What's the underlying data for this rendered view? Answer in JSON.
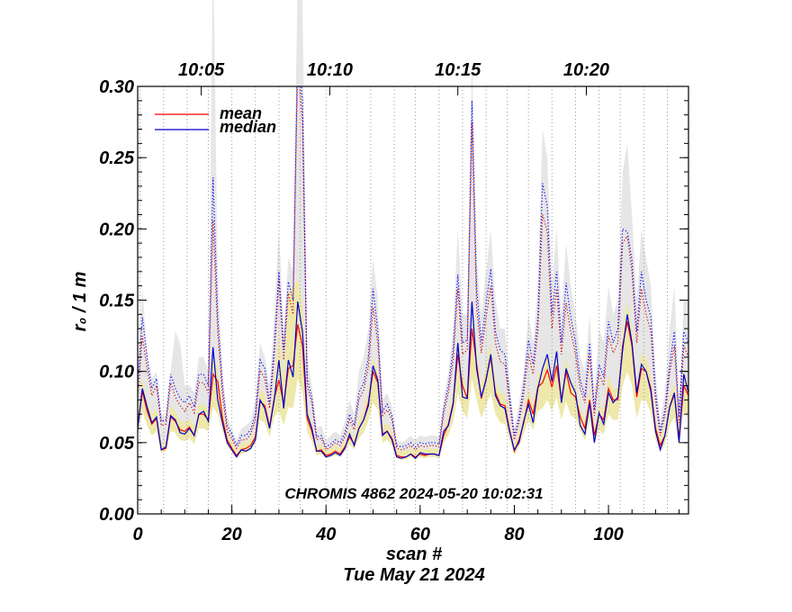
{
  "chart_data": {
    "type": "line",
    "title": "",
    "xlabel": "scan #",
    "ylabel": "r₀ / 1 m",
    "xlim": [
      0,
      117
    ],
    "ylim": [
      0.0,
      0.3
    ],
    "x_ticks": [
      0,
      20,
      40,
      60,
      80,
      100
    ],
    "x_tick_labels": [
      "0",
      "20",
      "40",
      "60",
      "80",
      "100"
    ],
    "y_ticks": [
      0.0,
      0.05,
      0.1,
      0.15,
      0.2,
      0.25,
      0.3
    ],
    "y_tick_labels": [
      "0.00",
      "0.05",
      "0.10",
      "0.15",
      "0.20",
      "0.25",
      "0.30"
    ],
    "top_axis_labels": [
      {
        "x": 13.5,
        "label": "10:05"
      },
      {
        "x": 40.8,
        "label": "10:10"
      },
      {
        "x": 68.0,
        "label": "10:15"
      },
      {
        "x": 95.3,
        "label": "10:20"
      }
    ],
    "time_gridlines_x": [
      0.5,
      5.5,
      10.5,
      15,
      20,
      25,
      30,
      34.5,
      40,
      44.5,
      49.5,
      54.5,
      59,
      64,
      69,
      74,
      78.5,
      83,
      88,
      93,
      98,
      102.5,
      107.5,
      112.5
    ],
    "annotation": "CHROMIS 4862 2024-05-20 10:02:31",
    "date_label": "Tue May 21 2024",
    "legend": [
      {
        "name": "mean",
        "color": "#ff0000"
      },
      {
        "name": "median",
        "color": "#0000cc"
      }
    ],
    "series": [
      {
        "name": "mean",
        "color": "#ff0000",
        "style": "solid",
        "values": [
          0.062,
          0.086,
          0.072,
          0.063,
          0.067,
          0.045,
          0.046,
          0.068,
          0.065,
          0.059,
          0.058,
          0.061,
          0.055,
          0.07,
          0.07,
          0.066,
          0.098,
          0.093,
          0.067,
          0.052,
          0.046,
          0.041,
          0.045,
          0.046,
          0.048,
          0.054,
          0.079,
          0.076,
          0.061,
          0.081,
          0.094,
          0.077,
          0.102,
          0.104,
          0.133,
          0.118,
          0.067,
          0.058,
          0.044,
          0.045,
          0.041,
          0.042,
          0.044,
          0.042,
          0.047,
          0.054,
          0.049,
          0.06,
          0.066,
          0.078,
          0.1,
          0.092,
          0.056,
          0.058,
          0.053,
          0.041,
          0.04,
          0.04,
          0.042,
          0.04,
          0.042,
          0.041,
          0.042,
          0.042,
          0.041,
          0.055,
          0.063,
          0.078,
          0.112,
          0.09,
          0.081,
          0.13,
          0.105,
          0.081,
          0.095,
          0.11,
          0.085,
          0.077,
          0.076,
          0.059,
          0.044,
          0.052,
          0.064,
          0.08,
          0.07,
          0.089,
          0.092,
          0.101,
          0.089,
          0.104,
          0.08,
          0.1,
          0.085,
          0.082,
          0.068,
          0.06,
          0.08,
          0.055,
          0.07,
          0.066,
          0.088,
          0.08,
          0.08,
          0.118,
          0.135,
          0.118,
          0.082,
          0.102,
          0.1,
          0.088,
          0.06,
          0.048,
          0.055,
          0.075,
          0.084,
          0.053,
          0.09,
          0.083
        ]
      },
      {
        "name": "median",
        "color": "#0000cc",
        "style": "solid",
        "values": [
          0.06,
          0.088,
          0.075,
          0.064,
          0.068,
          0.045,
          0.047,
          0.069,
          0.066,
          0.057,
          0.056,
          0.06,
          0.055,
          0.07,
          0.072,
          0.065,
          0.117,
          0.08,
          0.064,
          0.05,
          0.045,
          0.04,
          0.045,
          0.044,
          0.046,
          0.052,
          0.08,
          0.074,
          0.06,
          0.08,
          0.108,
          0.074,
          0.108,
          0.096,
          0.149,
          0.128,
          0.07,
          0.06,
          0.044,
          0.044,
          0.04,
          0.041,
          0.043,
          0.041,
          0.046,
          0.056,
          0.048,
          0.06,
          0.066,
          0.076,
          0.104,
          0.094,
          0.055,
          0.058,
          0.052,
          0.04,
          0.039,
          0.04,
          0.042,
          0.039,
          0.043,
          0.042,
          0.042,
          0.042,
          0.041,
          0.058,
          0.062,
          0.077,
          0.12,
          0.082,
          0.081,
          0.149,
          0.102,
          0.082,
          0.094,
          0.112,
          0.083,
          0.076,
          0.074,
          0.058,
          0.045,
          0.05,
          0.065,
          0.077,
          0.064,
          0.088,
          0.102,
          0.112,
          0.093,
          0.114,
          0.078,
          0.102,
          0.092,
          0.085,
          0.062,
          0.056,
          0.078,
          0.05,
          0.071,
          0.063,
          0.085,
          0.078,
          0.082,
          0.115,
          0.14,
          0.12,
          0.085,
          0.105,
          0.1,
          0.086,
          0.058,
          0.045,
          0.055,
          0.075,
          0.085,
          0.05,
          0.098,
          0.085
        ]
      },
      {
        "name": "mean high quantile",
        "color": "#cc0000",
        "style": "dotted",
        "values": [
          0.082,
          0.125,
          0.102,
          0.083,
          0.09,
          0.062,
          0.063,
          0.092,
          0.082,
          0.076,
          0.072,
          0.078,
          0.071,
          0.092,
          0.092,
          0.085,
          0.206,
          0.128,
          0.084,
          0.058,
          0.053,
          0.046,
          0.052,
          0.052,
          0.056,
          0.066,
          0.101,
          0.095,
          0.074,
          0.11,
          0.165,
          0.108,
          0.155,
          0.14,
          0.318,
          0.275,
          0.09,
          0.078,
          0.052,
          0.053,
          0.045,
          0.047,
          0.05,
          0.048,
          0.054,
          0.066,
          0.059,
          0.08,
          0.087,
          0.103,
          0.145,
          0.12,
          0.069,
          0.073,
          0.066,
          0.046,
          0.045,
          0.046,
          0.048,
          0.045,
          0.048,
          0.047,
          0.048,
          0.048,
          0.047,
          0.07,
          0.085,
          0.108,
          0.158,
          0.112,
          0.115,
          0.275,
          0.145,
          0.113,
          0.138,
          0.16,
          0.12,
          0.107,
          0.105,
          0.078,
          0.052,
          0.064,
          0.084,
          0.112,
          0.098,
          0.128,
          0.21,
          0.198,
          0.13,
          0.158,
          0.112,
          0.148,
          0.128,
          0.112,
          0.088,
          0.078,
          0.112,
          0.069,
          0.099,
          0.09,
          0.125,
          0.113,
          0.12,
          0.19,
          0.195,
          0.17,
          0.12,
          0.158,
          0.14,
          0.128,
          0.08,
          0.055,
          0.069,
          0.099,
          0.118,
          0.064,
          0.118,
          0.11
        ]
      },
      {
        "name": "median high quantile",
        "color": "#0000ff",
        "style": "dotted",
        "values": [
          0.09,
          0.138,
          0.11,
          0.088,
          0.095,
          0.065,
          0.066,
          0.098,
          0.088,
          0.081,
          0.078,
          0.083,
          0.075,
          0.098,
          0.098,
          0.09,
          0.236,
          0.138,
          0.09,
          0.062,
          0.056,
          0.048,
          0.055,
          0.055,
          0.059,
          0.07,
          0.108,
          0.102,
          0.078,
          0.117,
          0.17,
          0.115,
          0.163,
          0.15,
          0.33,
          0.29,
          0.095,
          0.082,
          0.054,
          0.055,
          0.047,
          0.049,
          0.052,
          0.05,
          0.057,
          0.07,
          0.062,
          0.085,
          0.092,
          0.11,
          0.158,
          0.128,
          0.072,
          0.077,
          0.069,
          0.048,
          0.047,
          0.048,
          0.05,
          0.047,
          0.05,
          0.049,
          0.05,
          0.05,
          0.049,
          0.074,
          0.09,
          0.115,
          0.168,
          0.12,
          0.122,
          0.29,
          0.158,
          0.12,
          0.148,
          0.172,
          0.128,
          0.115,
          0.112,
          0.083,
          0.055,
          0.068,
          0.09,
          0.122,
          0.105,
          0.138,
          0.232,
          0.216,
          0.14,
          0.17,
          0.12,
          0.162,
          0.138,
          0.12,
          0.094,
          0.082,
          0.12,
          0.073,
          0.105,
          0.096,
          0.135,
          0.12,
          0.13,
          0.2,
          0.198,
          0.178,
          0.128,
          0.17,
          0.15,
          0.138,
          0.085,
          0.058,
          0.073,
          0.105,
          0.128,
          0.068,
          0.128,
          0.12
        ]
      },
      {
        "name": "gray band upper",
        "color": "#e6e6e6",
        "style": "band",
        "values": [
          0.1,
          0.16,
          0.11,
          0.095,
          0.1,
          0.07,
          0.068,
          0.1,
          0.128,
          0.12,
          0.09,
          0.09,
          0.085,
          0.11,
          0.11,
          0.1,
          0.4,
          0.17,
          0.1,
          0.068,
          0.06,
          0.052,
          0.06,
          0.062,
          0.065,
          0.08,
          0.12,
          0.11,
          0.09,
          0.14,
          0.2,
          0.13,
          0.18,
          0.17,
          0.38,
          0.36,
          0.11,
          0.09,
          0.06,
          0.062,
          0.052,
          0.055,
          0.058,
          0.055,
          0.065,
          0.08,
          0.07,
          0.1,
          0.11,
          0.13,
          0.18,
          0.15,
          0.08,
          0.085,
          0.075,
          0.052,
          0.05,
          0.052,
          0.055,
          0.052,
          0.055,
          0.054,
          0.055,
          0.055,
          0.054,
          0.08,
          0.1,
          0.13,
          0.2,
          0.14,
          0.14,
          0.32,
          0.18,
          0.14,
          0.17,
          0.2,
          0.15,
          0.13,
          0.13,
          0.095,
          0.06,
          0.078,
          0.1,
          0.14,
          0.12,
          0.16,
          0.27,
          0.25,
          0.16,
          0.2,
          0.14,
          0.19,
          0.16,
          0.14,
          0.11,
          0.1,
          0.14,
          0.085,
          0.13,
          0.12,
          0.16,
          0.14,
          0.15,
          0.24,
          0.26,
          0.21,
          0.15,
          0.2,
          0.18,
          0.16,
          0.1,
          0.065,
          0.085,
          0.13,
          0.16,
          0.08,
          0.15,
          0.15
        ]
      },
      {
        "name": "gray band lower",
        "color": "#e6e6e6",
        "style": "band",
        "values": [
          0.062,
          0.086,
          0.072,
          0.063,
          0.067,
          0.045,
          0.046,
          0.068,
          0.065,
          0.059,
          0.058,
          0.061,
          0.055,
          0.07,
          0.07,
          0.066,
          0.098,
          0.093,
          0.067,
          0.052,
          0.046,
          0.041,
          0.045,
          0.046,
          0.048,
          0.054,
          0.079,
          0.076,
          0.061,
          0.081,
          0.094,
          0.077,
          0.102,
          0.104,
          0.133,
          0.118,
          0.067,
          0.058,
          0.044,
          0.045,
          0.041,
          0.042,
          0.044,
          0.042,
          0.047,
          0.054,
          0.049,
          0.06,
          0.066,
          0.078,
          0.1,
          0.092,
          0.056,
          0.058,
          0.053,
          0.041,
          0.04,
          0.04,
          0.042,
          0.04,
          0.042,
          0.041,
          0.042,
          0.042,
          0.041,
          0.055,
          0.063,
          0.078,
          0.112,
          0.09,
          0.081,
          0.13,
          0.105,
          0.081,
          0.095,
          0.11,
          0.085,
          0.077,
          0.076,
          0.059,
          0.044,
          0.052,
          0.064,
          0.08,
          0.07,
          0.089,
          0.092,
          0.101,
          0.089,
          0.104,
          0.08,
          0.1,
          0.085,
          0.082,
          0.068,
          0.06,
          0.08,
          0.055,
          0.07,
          0.066,
          0.088,
          0.08,
          0.08,
          0.118,
          0.135,
          0.118,
          0.082,
          0.102,
          0.1,
          0.088,
          0.06,
          0.048,
          0.055,
          0.075,
          0.084,
          0.053,
          0.09,
          0.083
        ]
      },
      {
        "name": "yellow band upper",
        "color": "#eee8aa",
        "style": "band",
        "values": [
          0.07,
          0.095,
          0.08,
          0.07,
          0.074,
          0.05,
          0.051,
          0.076,
          0.072,
          0.065,
          0.064,
          0.067,
          0.061,
          0.077,
          0.077,
          0.073,
          0.11,
          0.103,
          0.074,
          0.056,
          0.05,
          0.044,
          0.049,
          0.05,
          0.052,
          0.059,
          0.087,
          0.084,
          0.067,
          0.09,
          0.13,
          0.096,
          0.155,
          0.16,
          0.165,
          0.148,
          0.078,
          0.064,
          0.048,
          0.049,
          0.044,
          0.046,
          0.048,
          0.046,
          0.051,
          0.059,
          0.054,
          0.066,
          0.073,
          0.086,
          0.11,
          0.101,
          0.062,
          0.064,
          0.058,
          0.045,
          0.044,
          0.044,
          0.046,
          0.044,
          0.046,
          0.045,
          0.046,
          0.046,
          0.045,
          0.06,
          0.069,
          0.086,
          0.123,
          0.099,
          0.089,
          0.143,
          0.116,
          0.089,
          0.105,
          0.121,
          0.094,
          0.085,
          0.084,
          0.065,
          0.048,
          0.057,
          0.07,
          0.088,
          0.077,
          0.098,
          0.101,
          0.111,
          0.098,
          0.114,
          0.088,
          0.11,
          0.094,
          0.09,
          0.075,
          0.066,
          0.088,
          0.061,
          0.077,
          0.073,
          0.097,
          0.088,
          0.088,
          0.13,
          0.149,
          0.13,
          0.09,
          0.112,
          0.11,
          0.097,
          0.066,
          0.053,
          0.061,
          0.083,
          0.092,
          0.058,
          0.099,
          0.091
        ]
      },
      {
        "name": "yellow band lower",
        "color": "#eee8aa",
        "style": "band",
        "values": [
          0.055,
          0.072,
          0.062,
          0.055,
          0.058,
          0.043,
          0.044,
          0.058,
          0.057,
          0.052,
          0.051,
          0.053,
          0.049,
          0.06,
          0.06,
          0.058,
          0.075,
          0.07,
          0.058,
          0.048,
          0.043,
          0.039,
          0.042,
          0.043,
          0.045,
          0.049,
          0.066,
          0.064,
          0.054,
          0.068,
          0.072,
          0.062,
          0.075,
          0.074,
          0.095,
          0.085,
          0.058,
          0.051,
          0.041,
          0.042,
          0.039,
          0.04,
          0.041,
          0.04,
          0.044,
          0.049,
          0.045,
          0.053,
          0.057,
          0.065,
          0.078,
          0.073,
          0.05,
          0.052,
          0.048,
          0.039,
          0.038,
          0.038,
          0.04,
          0.038,
          0.04,
          0.039,
          0.04,
          0.04,
          0.039,
          0.05,
          0.055,
          0.065,
          0.085,
          0.072,
          0.067,
          0.095,
          0.08,
          0.067,
          0.076,
          0.085,
          0.07,
          0.064,
          0.063,
          0.052,
          0.041,
          0.047,
          0.056,
          0.066,
          0.059,
          0.072,
          0.074,
          0.08,
          0.072,
          0.082,
          0.066,
          0.079,
          0.069,
          0.067,
          0.058,
          0.052,
          0.066,
          0.049,
          0.059,
          0.056,
          0.07,
          0.066,
          0.066,
          0.09,
          0.1,
          0.09,
          0.067,
          0.08,
          0.079,
          0.071,
          0.052,
          0.044,
          0.049,
          0.062,
          0.068,
          0.047,
          0.072,
          0.068
        ]
      }
    ]
  }
}
